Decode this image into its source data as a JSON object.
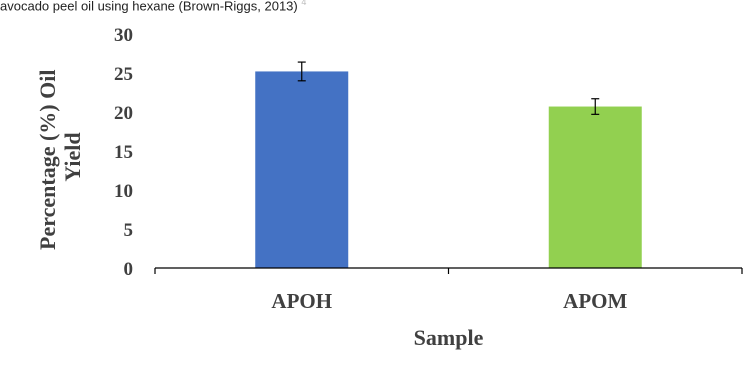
{
  "caption": "avocado peel oil using hexane (Brown-Riggs, 2013)",
  "caption_ref": "4",
  "chart_data": {
    "type": "bar",
    "categories": [
      "APOH",
      "APOM"
    ],
    "values": [
      25.2,
      20.7
    ],
    "errors": [
      1.2,
      1.0
    ],
    "colors": [
      "#4472C4",
      "#92D050"
    ],
    "xlabel": "Sample",
    "ylabel_lines": [
      "Percentage (%) Oil",
      "Yield"
    ],
    "ylim": [
      0,
      30
    ],
    "yticks": [
      "0",
      "5",
      "10",
      "15",
      "20",
      "25",
      "30"
    ],
    "grid": false,
    "legend": "none"
  }
}
